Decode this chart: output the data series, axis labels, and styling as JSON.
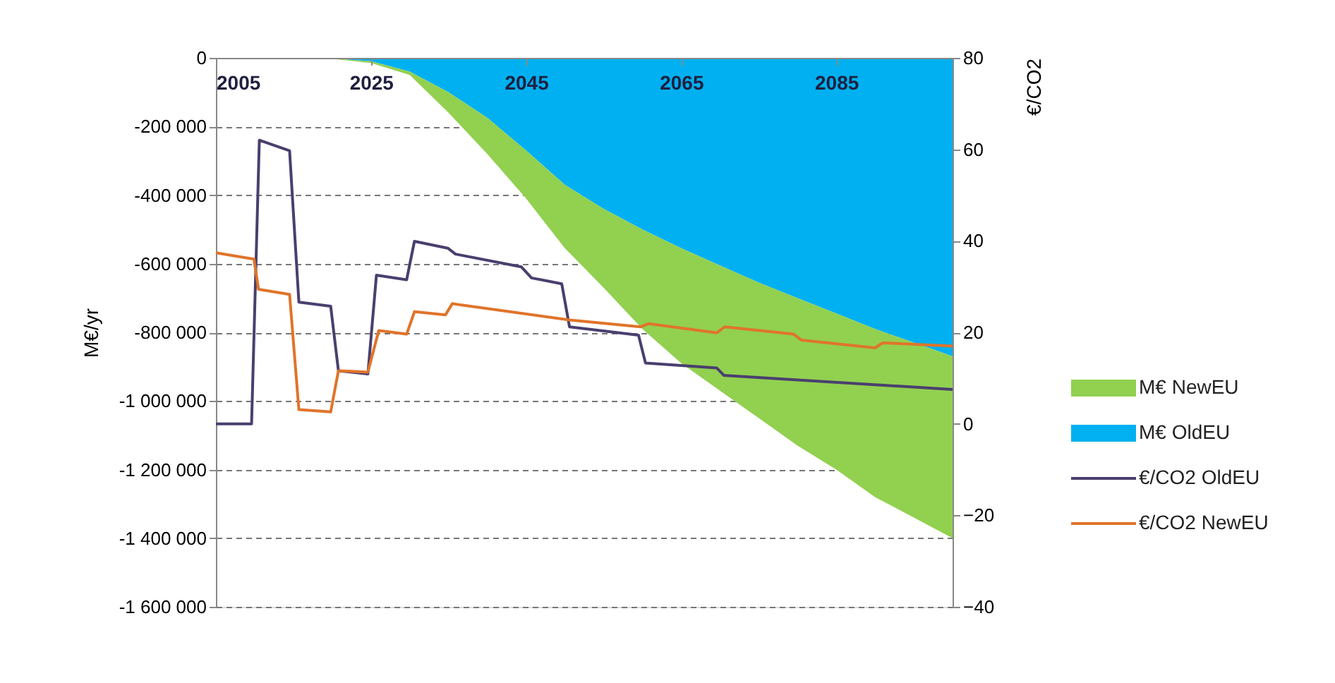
{
  "chart_data": {
    "type": "area",
    "stacked": true,
    "legend": "right",
    "grid": "y",
    "ylabel": "M€/yr",
    "y2label": "€/CO2",
    "xlim": [
      2005,
      2100
    ],
    "xticks": [
      2005,
      2025,
      2045,
      2065,
      2085
    ],
    "ylim": [
      -1600000,
      0
    ],
    "yticks": [
      0,
      {
        "value": -200000,
        "label": "-200 000"
      },
      {
        "value": -400000,
        "label": "-400 000"
      },
      {
        "value": -600000,
        "label": "-600 000"
      },
      {
        "value": -800000,
        "label": "-800 000"
      },
      {
        "value": -1000000,
        "label": "-1 000 000"
      },
      {
        "value": -1200000,
        "label": "-1 200 000"
      },
      {
        "value": -1400000,
        "label": "-1 400 000"
      },
      {
        "value": -1600000,
        "label": "-1 600 000"
      }
    ],
    "y2lim": [
      -40,
      80
    ],
    "y2ticks": [
      -40,
      -20,
      0,
      20,
      40,
      60,
      80
    ],
    "x": [
      2005,
      2018,
      2020,
      2025,
      2030,
      2035,
      2040,
      2045,
      2050,
      2055,
      2060,
      2065,
      2070,
      2075,
      2080,
      2085,
      2090,
      2095,
      2100
    ],
    "series": [
      {
        "name": "M€ OldEU",
        "color": "#00b0f0",
        "values": [
          0,
          0,
          -2000,
          -10000,
          -40000,
          -100000,
          -175000,
          -270000,
          -370000,
          -440000,
          -500000,
          -555000,
          -605000,
          -655000,
          -700000,
          -745000,
          -790000,
          -830000,
          -870000
        ]
      },
      {
        "name": "M€  NewEU",
        "color": "#92d050",
        "values": [
          0,
          0,
          -1000,
          -5000,
          -10000,
          -60000,
          -105000,
          -140000,
          -185000,
          -230000,
          -290000,
          -335000,
          -365000,
          -395000,
          -430000,
          -455000,
          -490000,
          -510000,
          -530000
        ]
      },
      {
        "name": "€/CO2 OldEU",
        "type": "line",
        "axis": "y2",
        "color": "#4a3f6e",
        "x": [
          2005,
          2009.6,
          2010.6,
          2014.5,
          2015.7,
          2019.8,
          2020.8,
          2024.6,
          2025.7,
          2029.6,
          2030.6,
          2034.9,
          2035.9,
          2044.4,
          2045.7,
          2049.6,
          2050.6,
          2059.5,
          2060.4,
          2069.6,
          2070.5,
          2100
        ],
        "values": [
          0,
          0,
          62,
          59.7,
          26.6,
          25.7,
          11.6,
          10.9,
          32.5,
          31.5,
          39.9,
          38.4,
          37.1,
          34.3,
          31.9,
          30.6,
          21.2,
          19.4,
          13.3,
          12.2,
          10.6,
          7.5
        ]
      },
      {
        "name": "€/CO2 NewEU",
        "type": "line",
        "axis": "y2",
        "color": "#e0742a",
        "x": [
          2005,
          2009.9,
          2010.5,
          2014.5,
          2015.7,
          2019.8,
          2020.8,
          2024.6,
          2026,
          2029.6,
          2030.6,
          2034.6,
          2035.5,
          2036.5,
          2050.6,
          2059.8,
          2060.8,
          2069.6,
          2070.6,
          2079.5,
          2080.5,
          2090,
          2091,
          2100
        ],
        "values": [
          37.4,
          36,
          29.4,
          28.3,
          3.1,
          2.6,
          11.6,
          11.3,
          20.4,
          19.6,
          24.5,
          23.8,
          26.3,
          26,
          22.7,
          21.2,
          21.9,
          19.9,
          21.2,
          19.6,
          18.3,
          16.6,
          17.7,
          17
        ]
      }
    ]
  }
}
